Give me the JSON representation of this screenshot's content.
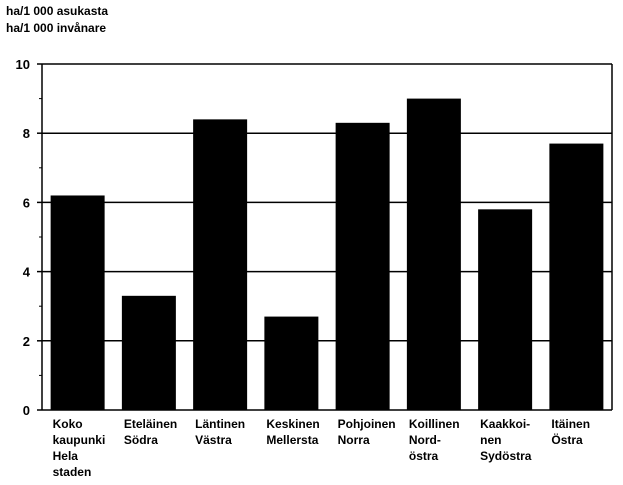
{
  "chart_data": {
    "type": "bar",
    "ylabel_lines": [
      "ha/1 000 asukasta",
      "ha/1 000 invånare"
    ],
    "categories": [
      [
        "Koko",
        "kaupunki",
        "Hela",
        "staden"
      ],
      [
        "Eteläinen",
        "Södra"
      ],
      [
        "Läntinen",
        "Västra"
      ],
      [
        "Keskinen",
        "Mellersta"
      ],
      [
        "Pohjoinen",
        "Norra"
      ],
      [
        "Koillinen",
        "Nord-",
        "östra"
      ],
      [
        "Kaakkoi-",
        "nen",
        "Sydöstra"
      ],
      [
        "Itäinen",
        "Östra"
      ]
    ],
    "values": [
      6.2,
      3.3,
      8.4,
      2.7,
      8.3,
      9.0,
      5.8,
      7.7
    ],
    "ylim": [
      0,
      10
    ],
    "yticks": [
      "0",
      "2",
      "4",
      "6",
      "8",
      "10"
    ],
    "grid": true,
    "bar_color": "#000000"
  }
}
